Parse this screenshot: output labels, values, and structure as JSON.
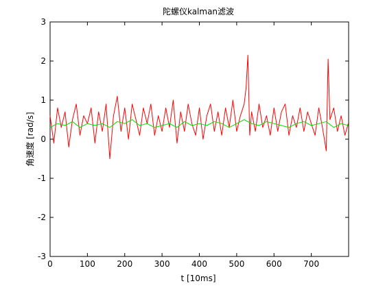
{
  "chart_data": {
    "type": "line",
    "title": "陀螺仪kalman滤波",
    "xlabel": "t [10ms]",
    "ylabel": "角速度 [rad/s]",
    "xlim": [
      0,
      800
    ],
    "ylim": [
      -3,
      3
    ],
    "xticks": [
      0,
      100,
      200,
      300,
      400,
      500,
      600,
      700
    ],
    "yticks": [
      -3,
      -2,
      -1,
      0,
      1,
      2,
      3
    ],
    "xtick_labels": [
      "0",
      "100",
      "200",
      "300",
      "400",
      "500",
      "600",
      "700"
    ],
    "ytick_labels": [
      "-3",
      "-2",
      "-1",
      "0",
      "1",
      "2",
      "3"
    ],
    "grid": false,
    "legend": "none",
    "series": [
      {
        "color": "#ff0000",
        "x": [
          0,
          10,
          20,
          30,
          40,
          50,
          60,
          70,
          80,
          90,
          100,
          110,
          120,
          130,
          140,
          150,
          160,
          170,
          180,
          190,
          200,
          210,
          220,
          230,
          240,
          250,
          260,
          270,
          280,
          290,
          300,
          310,
          320,
          330,
          340,
          350,
          360,
          370,
          380,
          390,
          400,
          410,
          420,
          430,
          440,
          450,
          460,
          470,
          480,
          490,
          500,
          510,
          520,
          525,
          530,
          535,
          540,
          550,
          560,
          570,
          580,
          590,
          600,
          610,
          620,
          630,
          640,
          650,
          660,
          670,
          680,
          690,
          700,
          710,
          720,
          730,
          740,
          745,
          750,
          760,
          770,
          780,
          790,
          799
        ],
        "y": [
          0.6,
          -0.1,
          0.8,
          0.3,
          0.7,
          -0.2,
          0.5,
          0.9,
          0.1,
          0.6,
          0.4,
          0.8,
          -0.1,
          0.7,
          0.2,
          0.9,
          -0.5,
          0.6,
          1.1,
          0.2,
          0.8,
          0.0,
          0.9,
          0.5,
          0.1,
          0.8,
          0.4,
          0.9,
          0.1,
          0.6,
          0.2,
          0.8,
          0.3,
          1.0,
          -0.1,
          0.7,
          0.2,
          0.9,
          0.4,
          0.1,
          0.8,
          0.0,
          0.6,
          0.9,
          0.2,
          0.7,
          0.1,
          0.8,
          0.3,
          1.0,
          0.2,
          0.6,
          0.9,
          1.3,
          2.15,
          0.1,
          0.7,
          0.2,
          0.9,
          0.3,
          0.6,
          0.1,
          0.8,
          0.2,
          0.7,
          0.9,
          0.1,
          0.6,
          0.3,
          0.8,
          0.2,
          0.7,
          0.4,
          0.1,
          0.8,
          0.3,
          -0.3,
          2.05,
          0.5,
          0.8,
          0.2,
          0.6,
          0.1,
          0.4
        ]
      },
      {
        "color": "#00dd00",
        "x": [
          0,
          20,
          40,
          60,
          80,
          100,
          120,
          140,
          160,
          180,
          200,
          220,
          240,
          260,
          280,
          300,
          320,
          340,
          360,
          380,
          400,
          420,
          440,
          460,
          480,
          500,
          520,
          540,
          560,
          580,
          600,
          620,
          640,
          660,
          680,
          700,
          720,
          740,
          760,
          780,
          799
        ],
        "y": [
          0.3,
          0.4,
          0.35,
          0.45,
          0.3,
          0.4,
          0.35,
          0.4,
          0.3,
          0.45,
          0.4,
          0.5,
          0.35,
          0.4,
          0.3,
          0.35,
          0.4,
          0.3,
          0.45,
          0.35,
          0.4,
          0.35,
          0.45,
          0.4,
          0.3,
          0.4,
          0.5,
          0.4,
          0.35,
          0.45,
          0.4,
          0.35,
          0.3,
          0.4,
          0.45,
          0.35,
          0.4,
          0.45,
          0.3,
          0.4,
          0.35
        ]
      }
    ]
  }
}
